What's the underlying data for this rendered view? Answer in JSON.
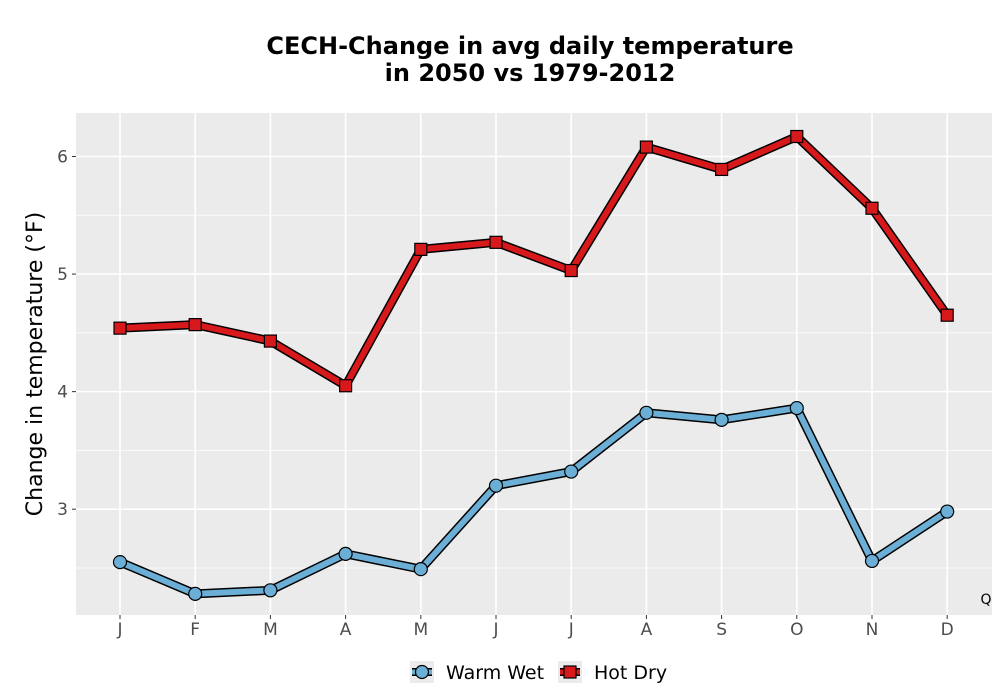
{
  "chart_data": {
    "type": "line",
    "title_lines": [
      "CECH-Change in avg daily temperature",
      "in 2050 vs 1979-2012"
    ],
    "xlabel": "",
    "ylabel": "Change in temperature (°F)",
    "categories": [
      "J",
      "F",
      "M",
      "A",
      "M",
      "J",
      "J",
      "A",
      "S",
      "O",
      "N",
      "D"
    ],
    "yticks": [
      3,
      4,
      5,
      6
    ],
    "ylim": [
      2.1,
      6.37
    ],
    "grid": true,
    "legend_position": "bottom",
    "corner_label": "Q",
    "series": [
      {
        "name": "Warm Wet",
        "marker": "circle",
        "color": "#6baed6",
        "values": [
          2.55,
          2.28,
          2.31,
          2.62,
          2.49,
          3.2,
          3.32,
          3.82,
          3.76,
          3.86,
          2.56,
          2.98
        ]
      },
      {
        "name": "Hot Dry",
        "marker": "square",
        "color": "#d7191c",
        "values": [
          4.54,
          4.57,
          4.43,
          4.05,
          5.21,
          5.27,
          5.03,
          6.08,
          5.89,
          6.17,
          5.56,
          4.65
        ]
      }
    ]
  }
}
